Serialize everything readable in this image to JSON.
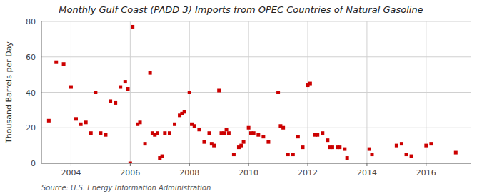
{
  "chart_data": {
    "type": "scatter",
    "title": "Monthly Gulf Coast (PADD 3) Imports from OPEC Countries of Natural Gasoline",
    "y_label": "Thousand Barrels per Day",
    "annotations": [
      "Source: U.S. Energy Information Administration"
    ],
    "color": "#cc0000",
    "marker": "square",
    "grid": true,
    "xlim": [
      2003.0,
      2017.5
    ],
    "xticks": [
      2004,
      2006,
      2008,
      2010,
      2012,
      2014,
      2016
    ],
    "ylim": [
      0,
      80
    ],
    "yticks": [
      0,
      20,
      40,
      60,
      80
    ],
    "x": [
      2003.25,
      2003.5,
      2003.75,
      2004.0,
      2004.17,
      2004.33,
      2004.5,
      2004.67,
      2004.83,
      2005.0,
      2005.17,
      2005.33,
      2005.5,
      2005.67,
      2005.83,
      2005.92,
      2006.0,
      2006.08,
      2006.25,
      2006.33,
      2006.5,
      2006.67,
      2006.75,
      2006.83,
      2006.92,
      2007.0,
      2007.08,
      2007.17,
      2007.33,
      2007.5,
      2007.67,
      2007.75,
      2007.83,
      2008.0,
      2008.08,
      2008.17,
      2008.33,
      2008.5,
      2008.67,
      2008.75,
      2008.83,
      2009.0,
      2009.08,
      2009.17,
      2009.25,
      2009.33,
      2009.5,
      2009.67,
      2009.75,
      2009.83,
      2010.0,
      2010.08,
      2010.17,
      2010.33,
      2010.5,
      2010.67,
      2011.0,
      2011.08,
      2011.17,
      2011.33,
      2011.5,
      2011.67,
      2011.83,
      2012.0,
      2012.08,
      2012.25,
      2012.33,
      2012.5,
      2012.67,
      2012.75,
      2012.83,
      2013.0,
      2013.08,
      2013.25,
      2013.33,
      2014.08,
      2014.17,
      2015.0,
      2015.17,
      2015.33,
      2015.5,
      2016.0,
      2016.17,
      2017.0
    ],
    "values": [
      24,
      57,
      56,
      43,
      25,
      22,
      23,
      17,
      40,
      17,
      16,
      35,
      34,
      43,
      46,
      42,
      0,
      77,
      22,
      23,
      11,
      51,
      17,
      16,
      17,
      3,
      4,
      17,
      17,
      22,
      27,
      28,
      29,
      40,
      22,
      21,
      19,
      12,
      17,
      11,
      10,
      41,
      17,
      17,
      19,
      17,
      5,
      9,
      10,
      12,
      20,
      17,
      17,
      16,
      15,
      12,
      40,
      21,
      20,
      5,
      5,
      15,
      9,
      44,
      45,
      16,
      16,
      17,
      13,
      9,
      9,
      9,
      9,
      8,
      3,
      8,
      5,
      10,
      11,
      5,
      4,
      10,
      11,
      6
    ]
  }
}
